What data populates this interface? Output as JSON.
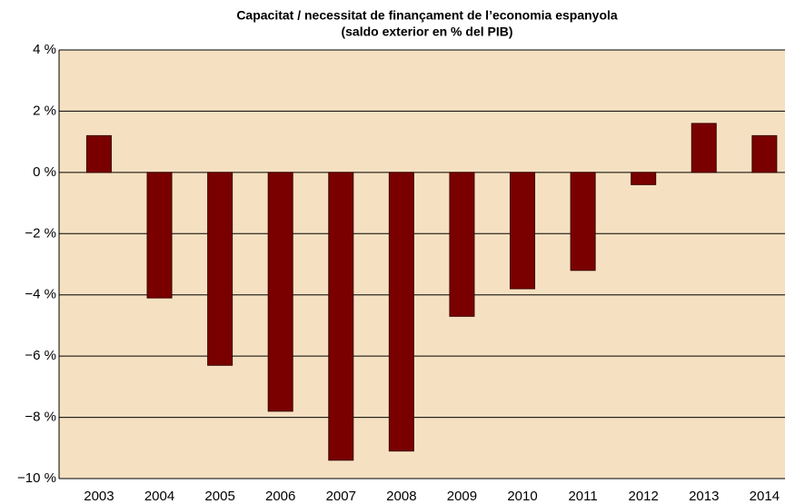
{
  "chart_data": {
    "type": "bar",
    "title": "Capacitat / necessitat de finançament de l’economia espanyola",
    "subtitle": "(saldo exterior en % del PIB)",
    "categories": [
      "2003",
      "2004",
      "2005",
      "2006",
      "2007",
      "2008",
      "2009",
      "2010",
      "2011",
      "2012",
      "2013",
      "2014"
    ],
    "values": [
      1.2,
      -4.1,
      -6.3,
      -7.8,
      -9.4,
      -9.1,
      -4.7,
      -3.8,
      -3.2,
      -0.4,
      1.6,
      1.2
    ],
    "color": "#7a0000",
    "ylim": [
      -10,
      4
    ],
    "yticks": [
      {
        "value": -10,
        "label": "−10 %"
      },
      {
        "value": -8,
        "label": "−8 %"
      },
      {
        "value": -6,
        "label": "−6 %"
      },
      {
        "value": -4,
        "label": "−4 %"
      },
      {
        "value": -2,
        "label": "−2 %"
      },
      {
        "value": 0,
        "label": "0 %"
      },
      {
        "value": 2,
        "label": "2 %"
      },
      {
        "value": 4,
        "label": "4 %"
      }
    ],
    "grid": true
  }
}
